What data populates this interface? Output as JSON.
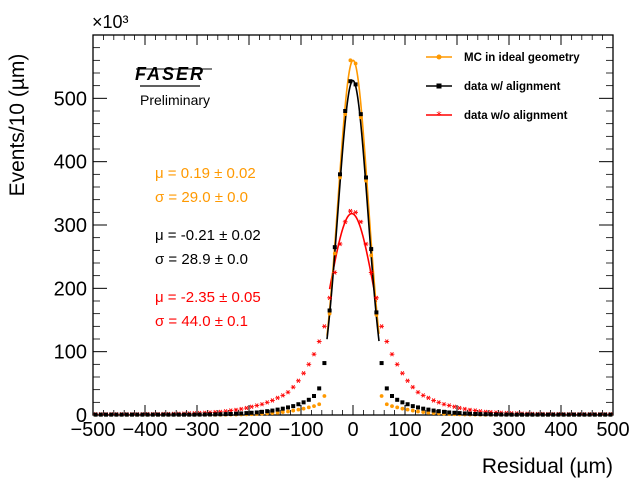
{
  "chart_data": {
    "type": "scatter",
    "xlabel": "Residual (µm)",
    "ylabel": "Events/10 (µm)",
    "y_scale_label": "×10³",
    "xlim": [
      -500,
      500
    ],
    "ylim": [
      0,
      600
    ],
    "x_ticks": [
      -500,
      -400,
      -300,
      -200,
      -100,
      0,
      100,
      200,
      300,
      400,
      500
    ],
    "y_ticks": [
      0,
      100,
      200,
      300,
      400,
      500
    ],
    "grid": false,
    "legend_position": "top-right",
    "logo_text": "FASER",
    "annotation": "Preliminary",
    "series": [
      {
        "name": "MC in ideal geometry",
        "color": "#FF9900",
        "marker": "circle",
        "mu_text": "μ = 0.19 ± 0.02",
        "sigma_text": "σ = 29.0 ± 0.0",
        "fit": {
          "mean": 0.19,
          "sigma": 29.0,
          "amplitude": 560,
          "range": [
            -50,
            50
          ]
        },
        "points": [
          [
            -495,
            0.3
          ],
          [
            -485,
            0.3
          ],
          [
            -475,
            0.3
          ],
          [
            -465,
            0.3
          ],
          [
            -455,
            0.3
          ],
          [
            -445,
            0.3
          ],
          [
            -435,
            0.3
          ],
          [
            -425,
            0.3
          ],
          [
            -415,
            0.3
          ],
          [
            -405,
            0.3
          ],
          [
            -395,
            0.3
          ],
          [
            -385,
            0.3
          ],
          [
            -375,
            0.3
          ],
          [
            -365,
            0.3
          ],
          [
            -355,
            0.3
          ],
          [
            -345,
            0.3
          ],
          [
            -335,
            0.3
          ],
          [
            -325,
            0.3
          ],
          [
            -315,
            0.3
          ],
          [
            -305,
            0.3
          ],
          [
            -295,
            0.3
          ],
          [
            -285,
            0.3
          ],
          [
            -275,
            0.3
          ],
          [
            -265,
            0.3
          ],
          [
            -255,
            0.3
          ],
          [
            -245,
            0.4
          ],
          [
            -235,
            0.5
          ],
          [
            -225,
            0.6
          ],
          [
            -215,
            0.8
          ],
          [
            -205,
            1
          ],
          [
            -195,
            1.2
          ],
          [
            -185,
            1.5
          ],
          [
            -175,
            2
          ],
          [
            -165,
            2.5
          ],
          [
            -155,
            3
          ],
          [
            -145,
            3.5
          ],
          [
            -135,
            4.5
          ],
          [
            -125,
            5.5
          ],
          [
            -115,
            7
          ],
          [
            -105,
            8.5
          ],
          [
            -95,
            10
          ],
          [
            -85,
            12
          ],
          [
            -75,
            14
          ],
          [
            -65,
            17
          ],
          [
            -55,
            30
          ],
          [
            -45,
            160
          ],
          [
            -35,
            255
          ],
          [
            -25,
            375
          ],
          [
            -15,
            475
          ],
          [
            -5,
            560
          ],
          [
            5,
            555
          ],
          [
            15,
            470
          ],
          [
            25,
            370
          ],
          [
            35,
            252
          ],
          [
            45,
            158
          ],
          [
            55,
            30
          ],
          [
            65,
            17
          ],
          [
            75,
            14
          ],
          [
            85,
            12
          ],
          [
            95,
            10
          ],
          [
            105,
            8.5
          ],
          [
            115,
            7
          ],
          [
            125,
            5.5
          ],
          [
            135,
            4.5
          ],
          [
            145,
            3.5
          ],
          [
            155,
            3
          ],
          [
            165,
            2.5
          ],
          [
            175,
            2
          ],
          [
            185,
            1.5
          ],
          [
            195,
            1.2
          ],
          [
            205,
            1
          ],
          [
            215,
            0.8
          ],
          [
            225,
            0.6
          ],
          [
            235,
            0.5
          ],
          [
            245,
            0.4
          ],
          [
            255,
            0.3
          ],
          [
            265,
            0.3
          ],
          [
            275,
            0.3
          ],
          [
            285,
            0.3
          ],
          [
            295,
            0.3
          ],
          [
            305,
            0.3
          ],
          [
            315,
            0.3
          ],
          [
            325,
            0.3
          ],
          [
            335,
            0.3
          ],
          [
            345,
            0.3
          ],
          [
            355,
            0.3
          ],
          [
            365,
            0.3
          ],
          [
            375,
            0.3
          ],
          [
            385,
            0.3
          ],
          [
            395,
            0.3
          ],
          [
            405,
            0.3
          ],
          [
            415,
            0.3
          ],
          [
            425,
            0.3
          ],
          [
            435,
            0.3
          ],
          [
            445,
            0.3
          ],
          [
            455,
            0.3
          ],
          [
            465,
            0.3
          ],
          [
            475,
            0.3
          ],
          [
            485,
            0.3
          ],
          [
            495,
            0.3
          ]
        ]
      },
      {
        "name": "data w/ alignment",
        "color": "#000000",
        "marker": "square",
        "mu_text": "μ = -0.21 ± 0.02",
        "sigma_text": "σ = 28.9 ± 0.0",
        "fit": {
          "mean": -0.21,
          "sigma": 28.9,
          "amplitude": 528,
          "range": [
            -50,
            50
          ]
        },
        "points": [
          [
            -495,
            0.6
          ],
          [
            -485,
            0.6
          ],
          [
            -475,
            0.6
          ],
          [
            -465,
            0.6
          ],
          [
            -455,
            0.6
          ],
          [
            -445,
            0.6
          ],
          [
            -435,
            0.6
          ],
          [
            -425,
            0.6
          ],
          [
            -415,
            0.6
          ],
          [
            -405,
            0.6
          ],
          [
            -395,
            0.6
          ],
          [
            -385,
            0.6
          ],
          [
            -375,
            0.6
          ],
          [
            -365,
            0.6
          ],
          [
            -355,
            0.6
          ],
          [
            -345,
            0.6
          ],
          [
            -335,
            0.6
          ],
          [
            -325,
            0.6
          ],
          [
            -315,
            0.6
          ],
          [
            -305,
            0.6
          ],
          [
            -295,
            0.7
          ],
          [
            -285,
            0.8
          ],
          [
            -275,
            0.9
          ],
          [
            -265,
            1
          ],
          [
            -255,
            1.2
          ],
          [
            -245,
            1.4
          ],
          [
            -235,
            1.6
          ],
          [
            -225,
            2
          ],
          [
            -215,
            2.4
          ],
          [
            -205,
            3
          ],
          [
            -195,
            3.5
          ],
          [
            -185,
            4
          ],
          [
            -175,
            5
          ],
          [
            -165,
            6
          ],
          [
            -155,
            7
          ],
          [
            -145,
            8.5
          ],
          [
            -135,
            10
          ],
          [
            -125,
            12
          ],
          [
            -115,
            14
          ],
          [
            -105,
            17
          ],
          [
            -95,
            20
          ],
          [
            -85,
            24
          ],
          [
            -75,
            30
          ],
          [
            -65,
            42
          ],
          [
            -55,
            82
          ],
          [
            -45,
            165
          ],
          [
            -35,
            265
          ],
          [
            -25,
            380
          ],
          [
            -15,
            480
          ],
          [
            -5,
            527
          ],
          [
            5,
            522
          ],
          [
            15,
            475
          ],
          [
            25,
            375
          ],
          [
            35,
            262
          ],
          [
            45,
            162
          ],
          [
            55,
            82
          ],
          [
            65,
            42
          ],
          [
            75,
            30
          ],
          [
            85,
            24
          ],
          [
            95,
            20
          ],
          [
            105,
            17
          ],
          [
            115,
            14
          ],
          [
            125,
            12
          ],
          [
            135,
            10
          ],
          [
            145,
            8.5
          ],
          [
            155,
            7
          ],
          [
            165,
            6
          ],
          [
            175,
            5
          ],
          [
            185,
            4
          ],
          [
            195,
            3.5
          ],
          [
            205,
            3
          ],
          [
            215,
            2.4
          ],
          [
            225,
            2
          ],
          [
            235,
            1.6
          ],
          [
            245,
            1.4
          ],
          [
            255,
            1.2
          ],
          [
            265,
            1
          ],
          [
            275,
            0.9
          ],
          [
            285,
            0.8
          ],
          [
            295,
            0.7
          ],
          [
            305,
            0.6
          ],
          [
            315,
            0.6
          ],
          [
            325,
            0.6
          ],
          [
            335,
            0.6
          ],
          [
            345,
            0.6
          ],
          [
            355,
            0.6
          ],
          [
            365,
            0.6
          ],
          [
            375,
            0.6
          ],
          [
            385,
            0.6
          ],
          [
            395,
            0.6
          ],
          [
            405,
            0.6
          ],
          [
            415,
            0.6
          ],
          [
            425,
            0.6
          ],
          [
            435,
            0.6
          ],
          [
            445,
            0.6
          ],
          [
            455,
            0.6
          ],
          [
            465,
            0.6
          ],
          [
            475,
            0.6
          ],
          [
            485,
            0.6
          ],
          [
            495,
            0.6
          ]
        ]
      },
      {
        "name": "data w/o alignment",
        "color": "#FF0000",
        "marker": "star",
        "mu_text": "μ = -2.35 ± 0.05",
        "sigma_text": "σ = 44.0 ± 0.1",
        "fit": {
          "mean": -2.35,
          "sigma": 44.0,
          "amplitude": 318,
          "range": [
            -45,
            45
          ]
        },
        "points": [
          [
            -495,
            1.2
          ],
          [
            -485,
            1.2
          ],
          [
            -475,
            1.2
          ],
          [
            -465,
            1.2
          ],
          [
            -455,
            1.2
          ],
          [
            -445,
            1.2
          ],
          [
            -435,
            1.2
          ],
          [
            -425,
            1.2
          ],
          [
            -415,
            1.2
          ],
          [
            -405,
            1.2
          ],
          [
            -395,
            1.3
          ],
          [
            -385,
            1.3
          ],
          [
            -375,
            1.4
          ],
          [
            -365,
            1.5
          ],
          [
            -355,
            1.6
          ],
          [
            -345,
            1.8
          ],
          [
            -335,
            2
          ],
          [
            -325,
            2.2
          ],
          [
            -315,
            2.5
          ],
          [
            -305,
            2.8
          ],
          [
            -295,
            3.2
          ],
          [
            -285,
            3.6
          ],
          [
            -275,
            4
          ],
          [
            -265,
            4.5
          ],
          [
            -255,
            5
          ],
          [
            -245,
            6
          ],
          [
            -235,
            7
          ],
          [
            -225,
            8
          ],
          [
            -215,
            9.5
          ],
          [
            -205,
            11
          ],
          [
            -195,
            13
          ],
          [
            -185,
            15
          ],
          [
            -175,
            17
          ],
          [
            -165,
            20
          ],
          [
            -155,
            23
          ],
          [
            -145,
            27
          ],
          [
            -135,
            31
          ],
          [
            -125,
            36
          ],
          [
            -115,
            44
          ],
          [
            -105,
            54
          ],
          [
            -95,
            66
          ],
          [
            -85,
            80
          ],
          [
            -75,
            96
          ],
          [
            -65,
            116
          ],
          [
            -55,
            140
          ],
          [
            -45,
            185
          ],
          [
            -35,
            225
          ],
          [
            -25,
            270
          ],
          [
            -15,
            305
          ],
          [
            -5,
            322
          ],
          [
            5,
            320
          ],
          [
            15,
            305
          ],
          [
            25,
            270
          ],
          [
            35,
            225
          ],
          [
            45,
            185
          ],
          [
            55,
            140
          ],
          [
            65,
            116
          ],
          [
            75,
            96
          ],
          [
            85,
            80
          ],
          [
            95,
            66
          ],
          [
            105,
            54
          ],
          [
            115,
            44
          ],
          [
            125,
            36
          ],
          [
            135,
            31
          ],
          [
            145,
            27
          ],
          [
            155,
            23
          ],
          [
            165,
            20
          ],
          [
            175,
            17
          ],
          [
            185,
            15
          ],
          [
            195,
            13
          ],
          [
            205,
            11
          ],
          [
            215,
            9.5
          ],
          [
            225,
            8
          ],
          [
            235,
            7
          ],
          [
            245,
            6
          ],
          [
            255,
            5
          ],
          [
            265,
            4.5
          ],
          [
            275,
            4
          ],
          [
            285,
            3.6
          ],
          [
            295,
            3.2
          ],
          [
            305,
            2.8
          ],
          [
            315,
            2.5
          ],
          [
            325,
            2.2
          ],
          [
            335,
            2
          ],
          [
            345,
            1.8
          ],
          [
            355,
            1.6
          ],
          [
            365,
            1.5
          ],
          [
            375,
            1.4
          ],
          [
            385,
            1.3
          ],
          [
            395,
            1.3
          ],
          [
            405,
            1.2
          ],
          [
            415,
            1.2
          ],
          [
            425,
            1.2
          ],
          [
            435,
            1.2
          ],
          [
            445,
            1.2
          ],
          [
            455,
            1.2
          ],
          [
            465,
            1.2
          ],
          [
            475,
            1.2
          ],
          [
            485,
            1.2
          ],
          [
            495,
            1.2
          ]
        ]
      }
    ]
  }
}
